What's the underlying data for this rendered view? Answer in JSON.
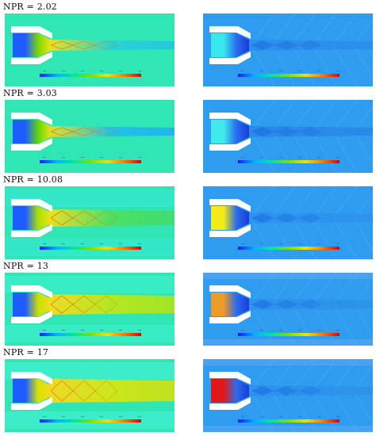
{
  "rows": [
    {
      "npr_label": "NPR = 2.02",
      "npr": 2.02
    },
    {
      "npr_label": "NPR = 3.03",
      "npr": 3.03
    },
    {
      "npr_label": "NPR = 10.08",
      "npr": 10.08
    },
    {
      "npr_label": "NPR = 13",
      "npr": 13
    },
    {
      "npr_label": "NPR = 17",
      "npr": 17
    }
  ],
  "colors": {
    "left_background": "#2fe0b0",
    "right_background": "#2e9bf0",
    "nozzle_wall": "#ffffff",
    "colorbar_stops": [
      "#1a1aff",
      "#00b4ff",
      "#00e6a0",
      "#7be000",
      "#f0e000",
      "#ff7a00",
      "#e00000"
    ]
  }
}
